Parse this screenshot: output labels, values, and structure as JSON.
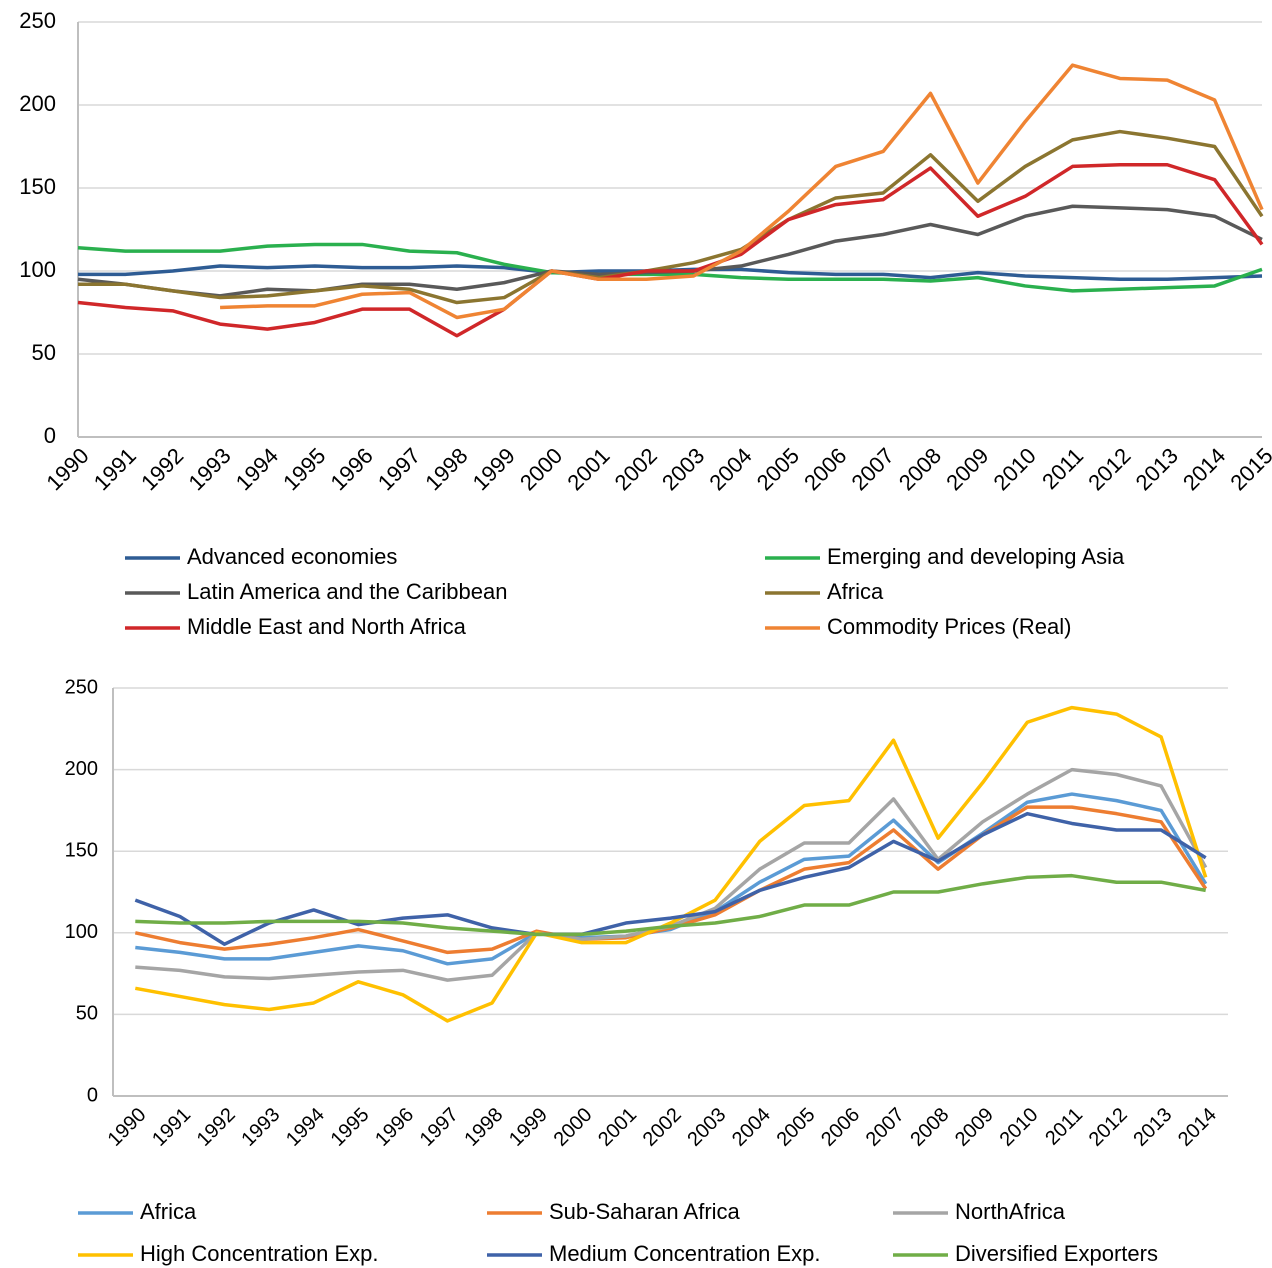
{
  "chart_data": [
    {
      "type": "line",
      "categories": [
        "1990",
        "1991",
        "1992",
        "1993",
        "1994",
        "1995",
        "1996",
        "1997",
        "1998",
        "1999",
        "2000",
        "2001",
        "2002",
        "2003",
        "2004",
        "2005",
        "2006",
        "2007",
        "2008",
        "2009",
        "2010",
        "2011",
        "2012",
        "2013",
        "2014",
        "2015"
      ],
      "ylim": [
        0,
        250
      ],
      "yticks": [
        0,
        50,
        100,
        150,
        200,
        250
      ],
      "grid": true,
      "legend": "bottom",
      "series": [
        {
          "name": "Advanced economies",
          "color": "#2e5c94",
          "values": [
            98,
            98,
            100,
            103,
            102,
            103,
            102,
            102,
            103,
            102,
            99,
            100,
            100,
            101,
            101,
            99,
            98,
            98,
            96,
            99,
            97,
            96,
            95,
            95,
            96,
            97
          ]
        },
        {
          "name": "Emerging and developing Asia",
          "color": "#2ab04e",
          "values": [
            114,
            112,
            112,
            112,
            115,
            116,
            116,
            112,
            111,
            104,
            99,
            98,
            98,
            98,
            96,
            95,
            95,
            95,
            94,
            96,
            91,
            88,
            89,
            90,
            91,
            101
          ]
        },
        {
          "name": "Latin America and the Caribbean",
          "color": "#595959",
          "values": [
            95,
            92,
            88,
            85,
            89,
            88,
            92,
            92,
            89,
            93,
            100,
            98,
            99,
            100,
            103,
            110,
            118,
            122,
            128,
            122,
            133,
            139,
            138,
            137,
            133,
            119
          ]
        },
        {
          "name": "Africa",
          "color": "#8b7530",
          "values": [
            92,
            92,
            88,
            84,
            85,
            88,
            91,
            89,
            81,
            84,
            100,
            96,
            100,
            105,
            113,
            131,
            144,
            147,
            170,
            142,
            163,
            179,
            184,
            180,
            175,
            133
          ]
        },
        {
          "name": "Middle East and North Africa",
          "color": "#d02729",
          "values": [
            81,
            78,
            76,
            68,
            65,
            69,
            77,
            77,
            61,
            77,
            100,
            95,
            100,
            100,
            110,
            131,
            140,
            143,
            162,
            133,
            145,
            163,
            164,
            164,
            155,
            116
          ]
        },
        {
          "name": "Commodity Prices (Real)",
          "color": "#ef8433",
          "values": [
            null,
            null,
            null,
            78,
            79,
            79,
            86,
            87,
            72,
            77,
            100,
            95,
            95,
            97,
            112,
            136,
            163,
            172,
            207,
            153,
            190,
            224,
            216,
            215,
            203,
            137
          ]
        }
      ]
    },
    {
      "type": "line",
      "categories": [
        "1990",
        "1991",
        "1992",
        "1993",
        "1994",
        "1995",
        "1996",
        "1997",
        "1998",
        "1999",
        "2000",
        "2001",
        "2002",
        "2003",
        "2004",
        "2005",
        "2006",
        "2007",
        "2008",
        "2009",
        "2010",
        "2011",
        "2012",
        "2013",
        "2014"
      ],
      "ylim": [
        0,
        250
      ],
      "yticks": [
        0,
        50,
        100,
        150,
        200,
        250
      ],
      "grid": true,
      "legend": "bottom",
      "series": [
        {
          "name": "Africa",
          "color": "#5b9bd5",
          "values": [
            91,
            88,
            84,
            84,
            88,
            92,
            89,
            81,
            84,
            100,
            97,
            98,
            102,
            113,
            131,
            145,
            147,
            169,
            143,
            161,
            180,
            185,
            181,
            175,
            130
          ]
        },
        {
          "name": "Sub-Saharan Africa",
          "color": "#ed7d31",
          "values": [
            100,
            94,
            90,
            93,
            97,
            102,
            95,
            88,
            90,
            101,
            96,
            97,
            103,
            111,
            126,
            139,
            143,
            163,
            139,
            160,
            177,
            177,
            173,
            168,
            127
          ]
        },
        {
          "name": "NorthAfrica",
          "color": "#a5a5a5",
          "values": [
            79,
            77,
            73,
            72,
            74,
            76,
            77,
            71,
            74,
            100,
            96,
            98,
            104,
            115,
            139,
            155,
            155,
            182,
            145,
            168,
            185,
            200,
            197,
            190,
            140
          ]
        },
        {
          "name": "High Concentration Exp.",
          "color": "#ffc000",
          "values": [
            66,
            61,
            56,
            53,
            57,
            70,
            62,
            46,
            57,
            100,
            94,
            94,
            106,
            120,
            156,
            178,
            181,
            218,
            158,
            192,
            229,
            238,
            234,
            220,
            134
          ]
        },
        {
          "name": "Medium Concentration Exp.",
          "color": "#3f62a8",
          "values": [
            120,
            110,
            93,
            106,
            114,
            105,
            109,
            111,
            103,
            99,
            99,
            106,
            109,
            113,
            126,
            134,
            140,
            156,
            144,
            160,
            173,
            167,
            163,
            163,
            146
          ]
        },
        {
          "name": "Diversified Exporters",
          "color": "#70ad47",
          "values": [
            107,
            106,
            106,
            107,
            107,
            107,
            106,
            103,
            101,
            99,
            99,
            101,
            104,
            106,
            110,
            117,
            117,
            125,
            125,
            130,
            134,
            135,
            131,
            131,
            126
          ]
        }
      ]
    }
  ]
}
